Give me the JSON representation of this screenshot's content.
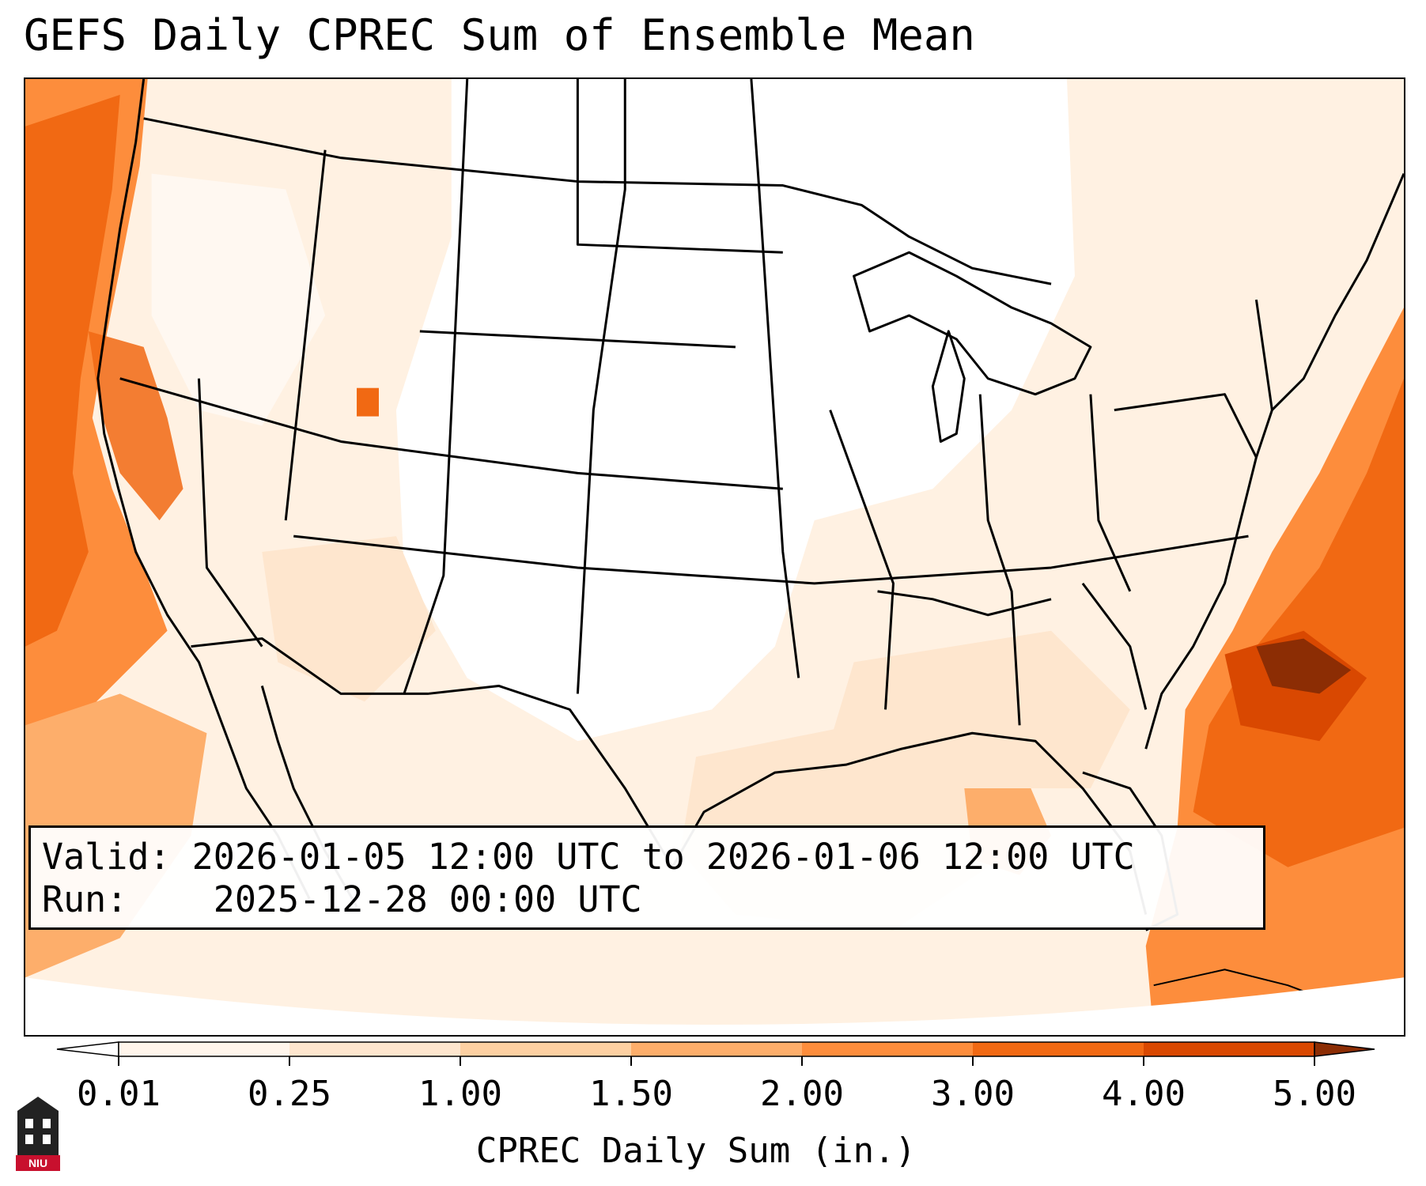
{
  "title": "GEFS Daily CPREC Sum of Ensemble Mean",
  "info": {
    "valid_label": "Valid:",
    "valid_value": "2026-01-05 12:00 UTC to 2026-01-06 12:00 UTC",
    "run_label": "Run:",
    "run_value": "2025-12-28 00:00 UTC"
  },
  "colorbar": {
    "label": "CPREC Daily Sum (in.)",
    "ticks": [
      "0.01",
      "0.25",
      "1.00",
      "1.50",
      "2.00",
      "3.00",
      "4.00",
      "5.00"
    ],
    "colors": [
      "#fff5eb",
      "#fee6ce",
      "#fdd0a2",
      "#fdae6b",
      "#fd8d3c",
      "#f16913",
      "#d94801",
      "#8c2d04"
    ]
  },
  "logo": {
    "text": "NIU"
  }
}
